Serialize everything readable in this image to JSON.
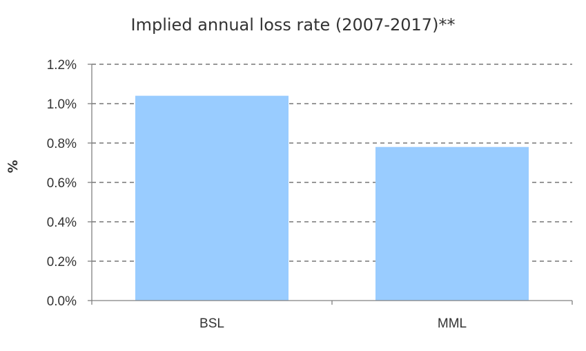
{
  "chart_data": {
    "type": "bar",
    "title": "Implied annual loss rate (2007-2017)**",
    "xlabel": "",
    "ylabel": "%",
    "categories": [
      "BSL",
      "MML"
    ],
    "values": [
      1.04,
      0.78
    ],
    "value_unit": "%",
    "ylim": [
      0,
      1.2
    ],
    "yticks": [
      "0.0%",
      "0.2%",
      "0.4%",
      "0.6%",
      "0.8%",
      "1.0%",
      "1.2%"
    ],
    "grid": "horizontal dashed",
    "legend": "none",
    "bar_color": "#99ccff",
    "grid_color": "#595959",
    "axis_color": "#808080",
    "text_color": "#333333"
  }
}
